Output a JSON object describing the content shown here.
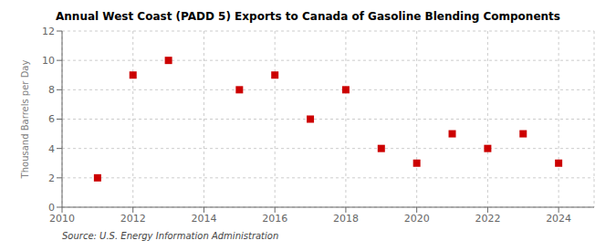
{
  "chart_data": {
    "type": "scatter",
    "title": "Annual West Coast (PADD 5) Exports to Canada of Gasoline Blending Components",
    "y_label": "Thousand Barrels per Day",
    "annotation": "Source: U.S. Energy Information Administration",
    "x": [
      2011,
      2012,
      2013,
      2015,
      2016,
      2017,
      2018,
      2019,
      2020,
      2021,
      2022,
      2023,
      2024
    ],
    "values": [
      2,
      9,
      10,
      8,
      9,
      6,
      8,
      4,
      3,
      5,
      4,
      5,
      3
    ],
    "color": "#cc0000",
    "marker": "square",
    "xlim": [
      2010,
      2025
    ],
    "ylim": [
      0,
      12
    ],
    "xticks": [
      2010,
      2012,
      2014,
      2016,
      2018,
      2020,
      2022,
      2024
    ],
    "yticks": [
      0,
      2,
      4,
      6,
      8,
      10,
      12
    ],
    "grid": true
  }
}
